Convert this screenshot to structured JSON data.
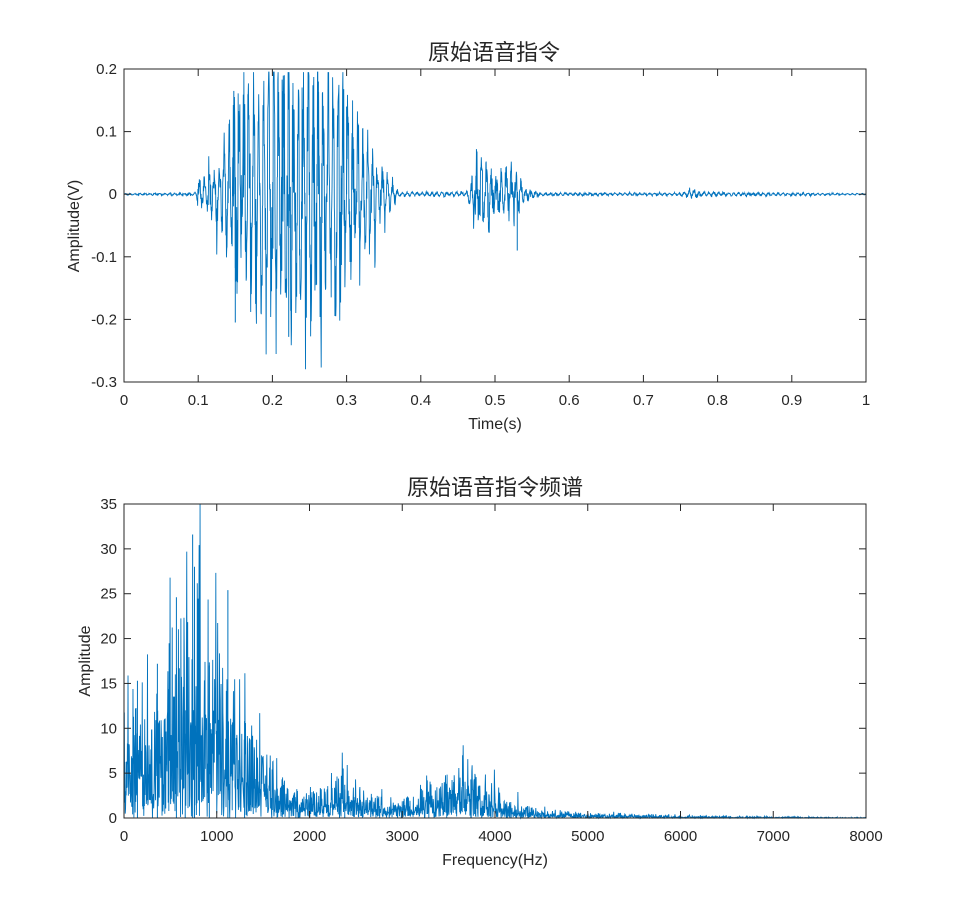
{
  "colors": {
    "series": "#0072BD",
    "axes": "#262626",
    "background": "#ffffff"
  },
  "chart_data": [
    {
      "type": "line",
      "title": "原始语音指令",
      "xlabel": "Time(s)",
      "ylabel": "Amplitude(V)",
      "xlim": [
        0,
        1
      ],
      "ylim": [
        -0.3,
        0.2
      ],
      "xticks": [
        "0",
        "0.1",
        "0.2",
        "0.3",
        "0.4",
        "0.5",
        "0.6",
        "0.7",
        "0.8",
        "0.9",
        "1"
      ],
      "yticks": [
        "-0.3",
        "-0.2",
        "-0.1",
        "0",
        "0.1",
        "0.2"
      ],
      "grid": false,
      "series": [
        {
          "envelope": [
            {
              "t": 0.0,
              "a": 0.001
            },
            {
              "t": 0.095,
              "a": 0.002
            },
            {
              "t": 0.1,
              "a": 0.015
            },
            {
              "t": 0.13,
              "a": 0.06
            },
            {
              "t": 0.15,
              "a": 0.14
            },
            {
              "t": 0.18,
              "a": 0.18
            },
            {
              "t": 0.22,
              "a": 0.2
            },
            {
              "t": 0.26,
              "a": 0.19
            },
            {
              "t": 0.3,
              "a": 0.14
            },
            {
              "t": 0.33,
              "a": 0.08
            },
            {
              "t": 0.36,
              "a": 0.02
            },
            {
              "t": 0.37,
              "a": 0.003
            },
            {
              "t": 0.46,
              "a": 0.003
            },
            {
              "t": 0.47,
              "a": 0.03
            },
            {
              "t": 0.48,
              "a": 0.06
            },
            {
              "t": 0.5,
              "a": 0.035
            },
            {
              "t": 0.52,
              "a": 0.04
            },
            {
              "t": 0.54,
              "a": 0.015
            },
            {
              "t": 0.56,
              "a": 0.002
            },
            {
              "t": 0.75,
              "a": 0.002
            },
            {
              "t": 0.765,
              "a": 0.008
            },
            {
              "t": 0.78,
              "a": 0.003
            },
            {
              "t": 1.0,
              "a": 0.001
            }
          ],
          "peaks": [
            {
              "t": 0.148,
              "v": 0.165
            },
            {
              "t": 0.15,
              "v": -0.205
            },
            {
              "t": 0.216,
              "v": 0.19
            },
            {
              "t": 0.222,
              "v": -0.228
            },
            {
              "t": 0.262,
              "v": 0.18
            },
            {
              "t": 0.3,
              "v": 0.14
            },
            {
              "t": 0.475,
              "v": 0.072
            },
            {
              "t": 0.53,
              "v": -0.09
            },
            {
              "t": 0.522,
              "v": 0.02
            }
          ]
        }
      ]
    },
    {
      "type": "line",
      "title": "原始语音指令频谱",
      "xlabel": "Frequency(Hz)",
      "ylabel": "Amplitude",
      "xlim": [
        0,
        8000
      ],
      "ylim": [
        0,
        35
      ],
      "xticks": [
        "0",
        "1000",
        "2000",
        "3000",
        "4000",
        "5000",
        "6000",
        "7000",
        "8000"
      ],
      "yticks": [
        "0",
        "5",
        "10",
        "15",
        "20",
        "25",
        "30",
        "35"
      ],
      "grid": false,
      "series": [
        {
          "envelope": [
            {
              "f": 0,
              "a": 4
            },
            {
              "f": 150,
              "a": 6
            },
            {
              "f": 300,
              "a": 7
            },
            {
              "f": 450,
              "a": 9
            },
            {
              "f": 600,
              "a": 10
            },
            {
              "f": 800,
              "a": 9
            },
            {
              "f": 1000,
              "a": 8
            },
            {
              "f": 1200,
              "a": 6.5
            },
            {
              "f": 1400,
              "a": 4.5
            },
            {
              "f": 1600,
              "a": 3
            },
            {
              "f": 1800,
              "a": 1.8
            },
            {
              "f": 2000,
              "a": 1.4
            },
            {
              "f": 2200,
              "a": 1.6
            },
            {
              "f": 2400,
              "a": 2.2
            },
            {
              "f": 2600,
              "a": 1.2
            },
            {
              "f": 2800,
              "a": 0.8
            },
            {
              "f": 3000,
              "a": 0.9
            },
            {
              "f": 3300,
              "a": 1.8
            },
            {
              "f": 3500,
              "a": 2.3
            },
            {
              "f": 3700,
              "a": 2.6
            },
            {
              "f": 3900,
              "a": 1.8
            },
            {
              "f": 4200,
              "a": 0.7
            },
            {
              "f": 4600,
              "a": 0.4
            },
            {
              "f": 5000,
              "a": 0.25
            },
            {
              "f": 6000,
              "a": 0.12
            },
            {
              "f": 7000,
              "a": 0.06
            },
            {
              "f": 8000,
              "a": 0.03
            }
          ],
          "peaks": [
            {
              "f": 145,
              "v": 15.3
            },
            {
              "f": 360,
              "v": 17.2
            },
            {
              "f": 565,
              "v": 24.6
            },
            {
              "f": 660,
              "v": 12
            },
            {
              "f": 740,
              "v": 31.6
            },
            {
              "f": 760,
              "v": 28
            },
            {
              "f": 920,
              "v": 17
            },
            {
              "f": 1120,
              "v": 25.4
            },
            {
              "f": 1300,
              "v": 10.8
            },
            {
              "f": 2380,
              "v": 3.7
            },
            {
              "f": 3740,
              "v": 4.3
            }
          ]
        }
      ]
    }
  ]
}
